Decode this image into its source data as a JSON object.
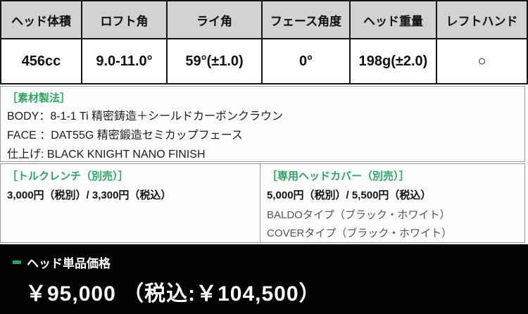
{
  "colors": {
    "header_bg": "#d2d2d2",
    "accent_green": "#2fa364",
    "muted_text": "#555555",
    "table_border": "#141414",
    "box_border": "#9a9a9a",
    "footer_bg": "#030303"
  },
  "spec_table": {
    "columns": [
      {
        "label": "ヘッド体積",
        "value": "456cc"
      },
      {
        "label": "ロフト角",
        "value": "9.0-11.0°"
      },
      {
        "label": "ライ角",
        "value": "59°(±1.0)"
      },
      {
        "label": "フェース角度",
        "value": "0°"
      },
      {
        "label": "ヘッド重量",
        "value": "198g(±2.0)"
      },
      {
        "label": "レフトハンド",
        "value": "○"
      }
    ]
  },
  "material": {
    "title": "［素材製法］",
    "lines": [
      "BODY：8-1-1 Ti 精密鋳造＋シールドカーボンクラウン",
      "FACE ：DAT55G 精密鍛造セミカップフェース",
      "仕上げ: BLACK KNIGHT NANO FINISH"
    ]
  },
  "torque_wrench": {
    "title": "［トルクレンチ（別売）］",
    "price": "3,000円（税別）/ 3,300円（税込）"
  },
  "head_cover": {
    "title": "［専用ヘッドカバー（別売）］",
    "price": "5,000円（税別）/ 5,500円（税込）",
    "options": [
      "BALDOタイプ（ブラック・ホワイト）",
      "COVERタイプ（ブラック・ホワイト）"
    ]
  },
  "footer": {
    "label": "ヘッド単品価格",
    "price": "￥95,000 （税込:￥104,500）"
  }
}
